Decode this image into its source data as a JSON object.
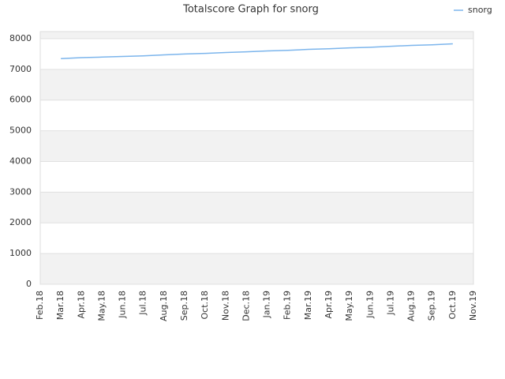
{
  "chart_data": {
    "type": "line",
    "title": "Totalscore Graph for snorg",
    "categories": [
      "Feb.18",
      "Mar.18",
      "Apr.18",
      "May.18",
      "Jun.18",
      "Jul.18",
      "Aug.18",
      "Sep.18",
      "Oct.18",
      "Nov.18",
      "Dec.18",
      "Jan.19",
      "Feb.19",
      "Mar.19",
      "Apr.19",
      "May.19",
      "Jun.19",
      "Jul.19",
      "Aug.19",
      "Sep.19",
      "Oct.19",
      "Nov.19"
    ],
    "series": [
      {
        "name": "snorg",
        "color": "#7cb5ec",
        "values": [
          null,
          7350,
          7380,
          7400,
          7420,
          7440,
          7470,
          7500,
          7520,
          7550,
          7570,
          7600,
          7620,
          7650,
          7670,
          7700,
          7720,
          7750,
          7780,
          7800,
          7830,
          null
        ]
      }
    ],
    "ylim": [
      0,
      8230
    ],
    "yticks": [
      0,
      1000,
      2000,
      3000,
      4000,
      5000,
      6000,
      7000,
      8000
    ],
    "grid": true,
    "legend": "top-right"
  }
}
